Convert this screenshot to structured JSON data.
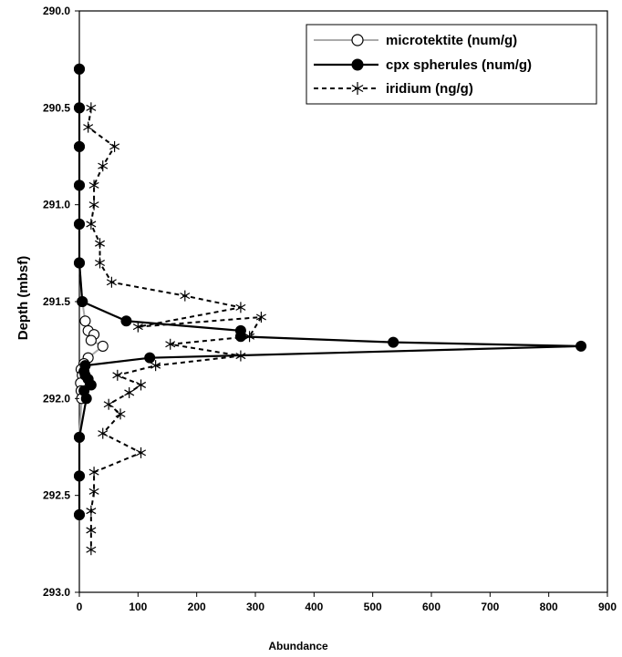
{
  "chart_data": {
    "type": "scatter",
    "title": "",
    "xlabel": "Abundance",
    "ylabel": "Depth  (mbsf)",
    "xlim": [
      0,
      900
    ],
    "ylim": [
      293.0,
      290.0
    ],
    "y_reversed": true,
    "x_ticks": [
      "0",
      "100",
      "200",
      "300",
      "400",
      "500",
      "600",
      "700",
      "800",
      "900"
    ],
    "y_ticks": [
      "290.0",
      "290.5",
      "291.0",
      "291.5",
      "292.0",
      "292.5",
      "293.0"
    ],
    "grid": false,
    "legend_position": "top-right",
    "series": [
      {
        "name": "microtektite (num/g)",
        "marker": "open-circle",
        "line": "thin gray",
        "color": "#bbbbbb",
        "points": [
          {
            "x": 0,
            "y": 290.3
          },
          {
            "x": 0,
            "y": 290.5
          },
          {
            "x": 0,
            "y": 290.7
          },
          {
            "x": 0,
            "y": 290.9
          },
          {
            "x": 0,
            "y": 291.1
          },
          {
            "x": 0,
            "y": 291.3
          },
          {
            "x": 5,
            "y": 291.5
          },
          {
            "x": 10,
            "y": 291.6
          },
          {
            "x": 15,
            "y": 291.65
          },
          {
            "x": 25,
            "y": 291.67
          },
          {
            "x": 20,
            "y": 291.7
          },
          {
            "x": 40,
            "y": 291.73
          },
          {
            "x": 15,
            "y": 291.79
          },
          {
            "x": 8,
            "y": 291.82
          },
          {
            "x": 3,
            "y": 291.85
          },
          {
            "x": 5,
            "y": 291.88
          },
          {
            "x": 2,
            "y": 291.92
          },
          {
            "x": 3,
            "y": 291.96
          },
          {
            "x": 4,
            "y": 292.0
          },
          {
            "x": 0,
            "y": 292.2
          },
          {
            "x": 0,
            "y": 292.4
          },
          {
            "x": 0,
            "y": 292.6
          }
        ]
      },
      {
        "name": "cpx spherules (num/g)",
        "marker": "filled-circle",
        "line": "solid black",
        "color": "#000000",
        "points": [
          {
            "x": 0,
            "y": 290.3
          },
          {
            "x": 0,
            "y": 290.5
          },
          {
            "x": 0,
            "y": 290.7
          },
          {
            "x": 0,
            "y": 290.9
          },
          {
            "x": 0,
            "y": 291.1
          },
          {
            "x": 0,
            "y": 291.3
          },
          {
            "x": 5,
            "y": 291.5
          },
          {
            "x": 80,
            "y": 291.6
          },
          {
            "x": 275,
            "y": 291.65
          },
          {
            "x": 275,
            "y": 291.68
          },
          {
            "x": 535,
            "y": 291.71
          },
          {
            "x": 855,
            "y": 291.73
          },
          {
            "x": 120,
            "y": 291.79
          },
          {
            "x": 10,
            "y": 291.83
          },
          {
            "x": 8,
            "y": 291.86
          },
          {
            "x": 10,
            "y": 291.88
          },
          {
            "x": 15,
            "y": 291.9
          },
          {
            "x": 20,
            "y": 291.93
          },
          {
            "x": 8,
            "y": 291.96
          },
          {
            "x": 12,
            "y": 292.0
          },
          {
            "x": 0,
            "y": 292.2
          },
          {
            "x": 0,
            "y": 292.4
          },
          {
            "x": 0,
            "y": 292.6
          }
        ]
      },
      {
        "name": "iridium (ng/g)",
        "marker": "asterisk",
        "line": "dashed black",
        "color": "#000000",
        "points": [
          {
            "x": 20,
            "y": 290.5
          },
          {
            "x": 15,
            "y": 290.6
          },
          {
            "x": 60,
            "y": 290.7
          },
          {
            "x": 40,
            "y": 290.8
          },
          {
            "x": 25,
            "y": 290.9
          },
          {
            "x": 25,
            "y": 291.0
          },
          {
            "x": 20,
            "y": 291.1
          },
          {
            "x": 35,
            "y": 291.2
          },
          {
            "x": 35,
            "y": 291.3
          },
          {
            "x": 55,
            "y": 291.4
          },
          {
            "x": 180,
            "y": 291.47
          },
          {
            "x": 275,
            "y": 291.53
          },
          {
            "x": 100,
            "y": 291.63
          },
          {
            "x": 310,
            "y": 291.58
          },
          {
            "x": 290,
            "y": 291.68
          },
          {
            "x": 155,
            "y": 291.72
          },
          {
            "x": 275,
            "y": 291.78
          },
          {
            "x": 130,
            "y": 291.83
          },
          {
            "x": 65,
            "y": 291.88
          },
          {
            "x": 105,
            "y": 291.93
          },
          {
            "x": 85,
            "y": 291.97
          },
          {
            "x": 50,
            "y": 292.03
          },
          {
            "x": 70,
            "y": 292.08
          },
          {
            "x": 40,
            "y": 292.18
          },
          {
            "x": 105,
            "y": 292.28
          },
          {
            "x": 25,
            "y": 292.38
          },
          {
            "x": 25,
            "y": 292.48
          },
          {
            "x": 20,
            "y": 292.58
          },
          {
            "x": 20,
            "y": 292.68
          },
          {
            "x": 20,
            "y": 292.78
          }
        ]
      }
    ]
  }
}
